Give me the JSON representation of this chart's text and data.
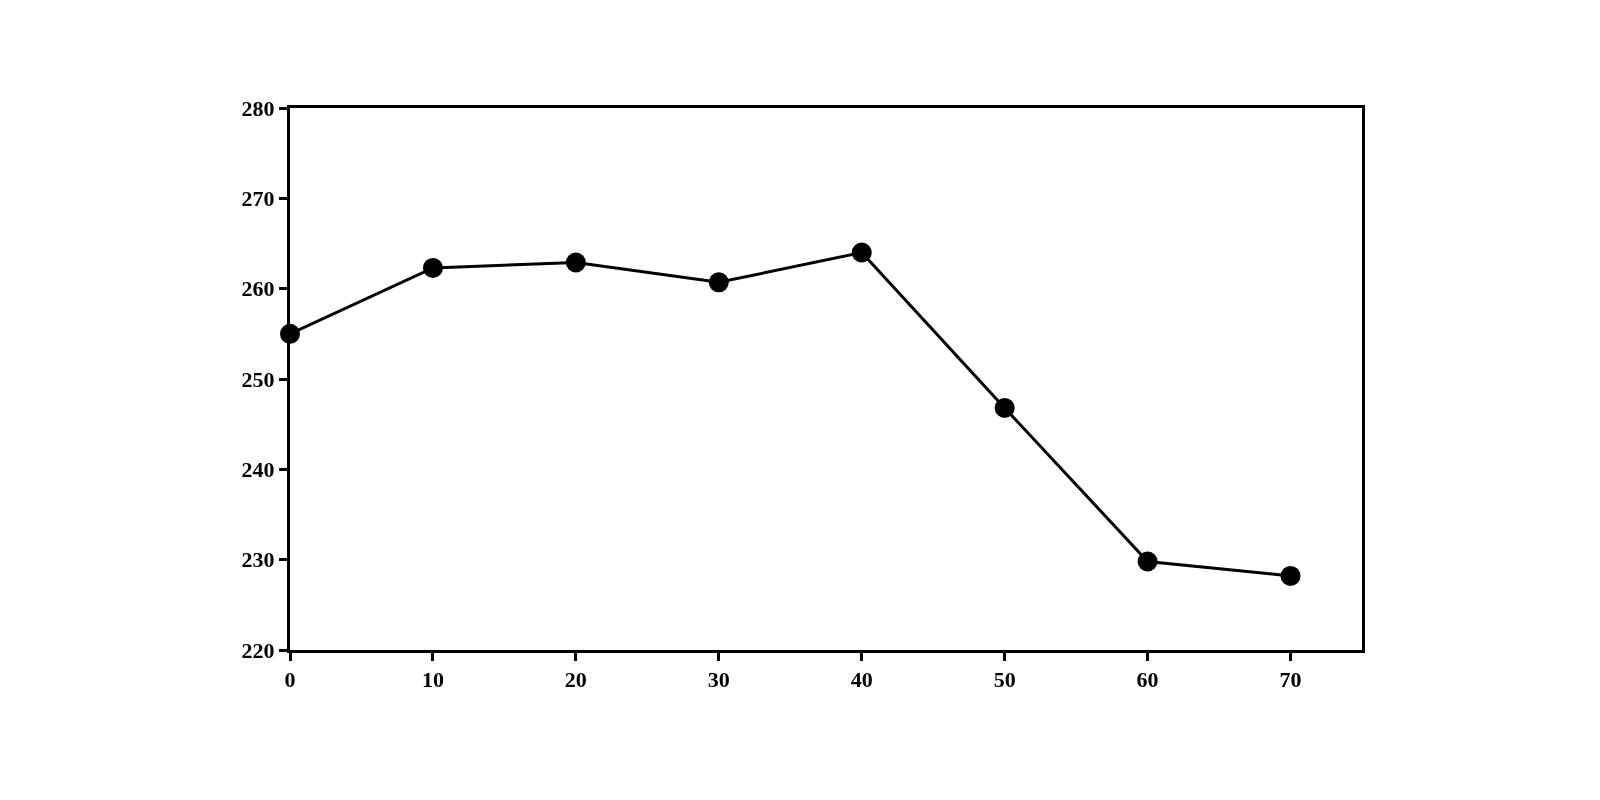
{
  "chart_data": {
    "type": "line",
    "x": [
      0,
      10,
      20,
      30,
      40,
      50,
      60,
      70
    ],
    "values": [
      255,
      262.3,
      262.9,
      260.7,
      264,
      246.8,
      229.8,
      228.2
    ],
    "color": "#000000",
    "marker": "circle",
    "line_style": "solid",
    "xlim": [
      0,
      75
    ],
    "xticks": [
      0,
      10,
      20,
      30,
      40,
      50,
      60,
      70
    ],
    "ylim": [
      220,
      280
    ],
    "yticks": [
      220,
      230,
      240,
      250,
      260,
      270,
      280
    ],
    "grid": false,
    "legend": false
  }
}
